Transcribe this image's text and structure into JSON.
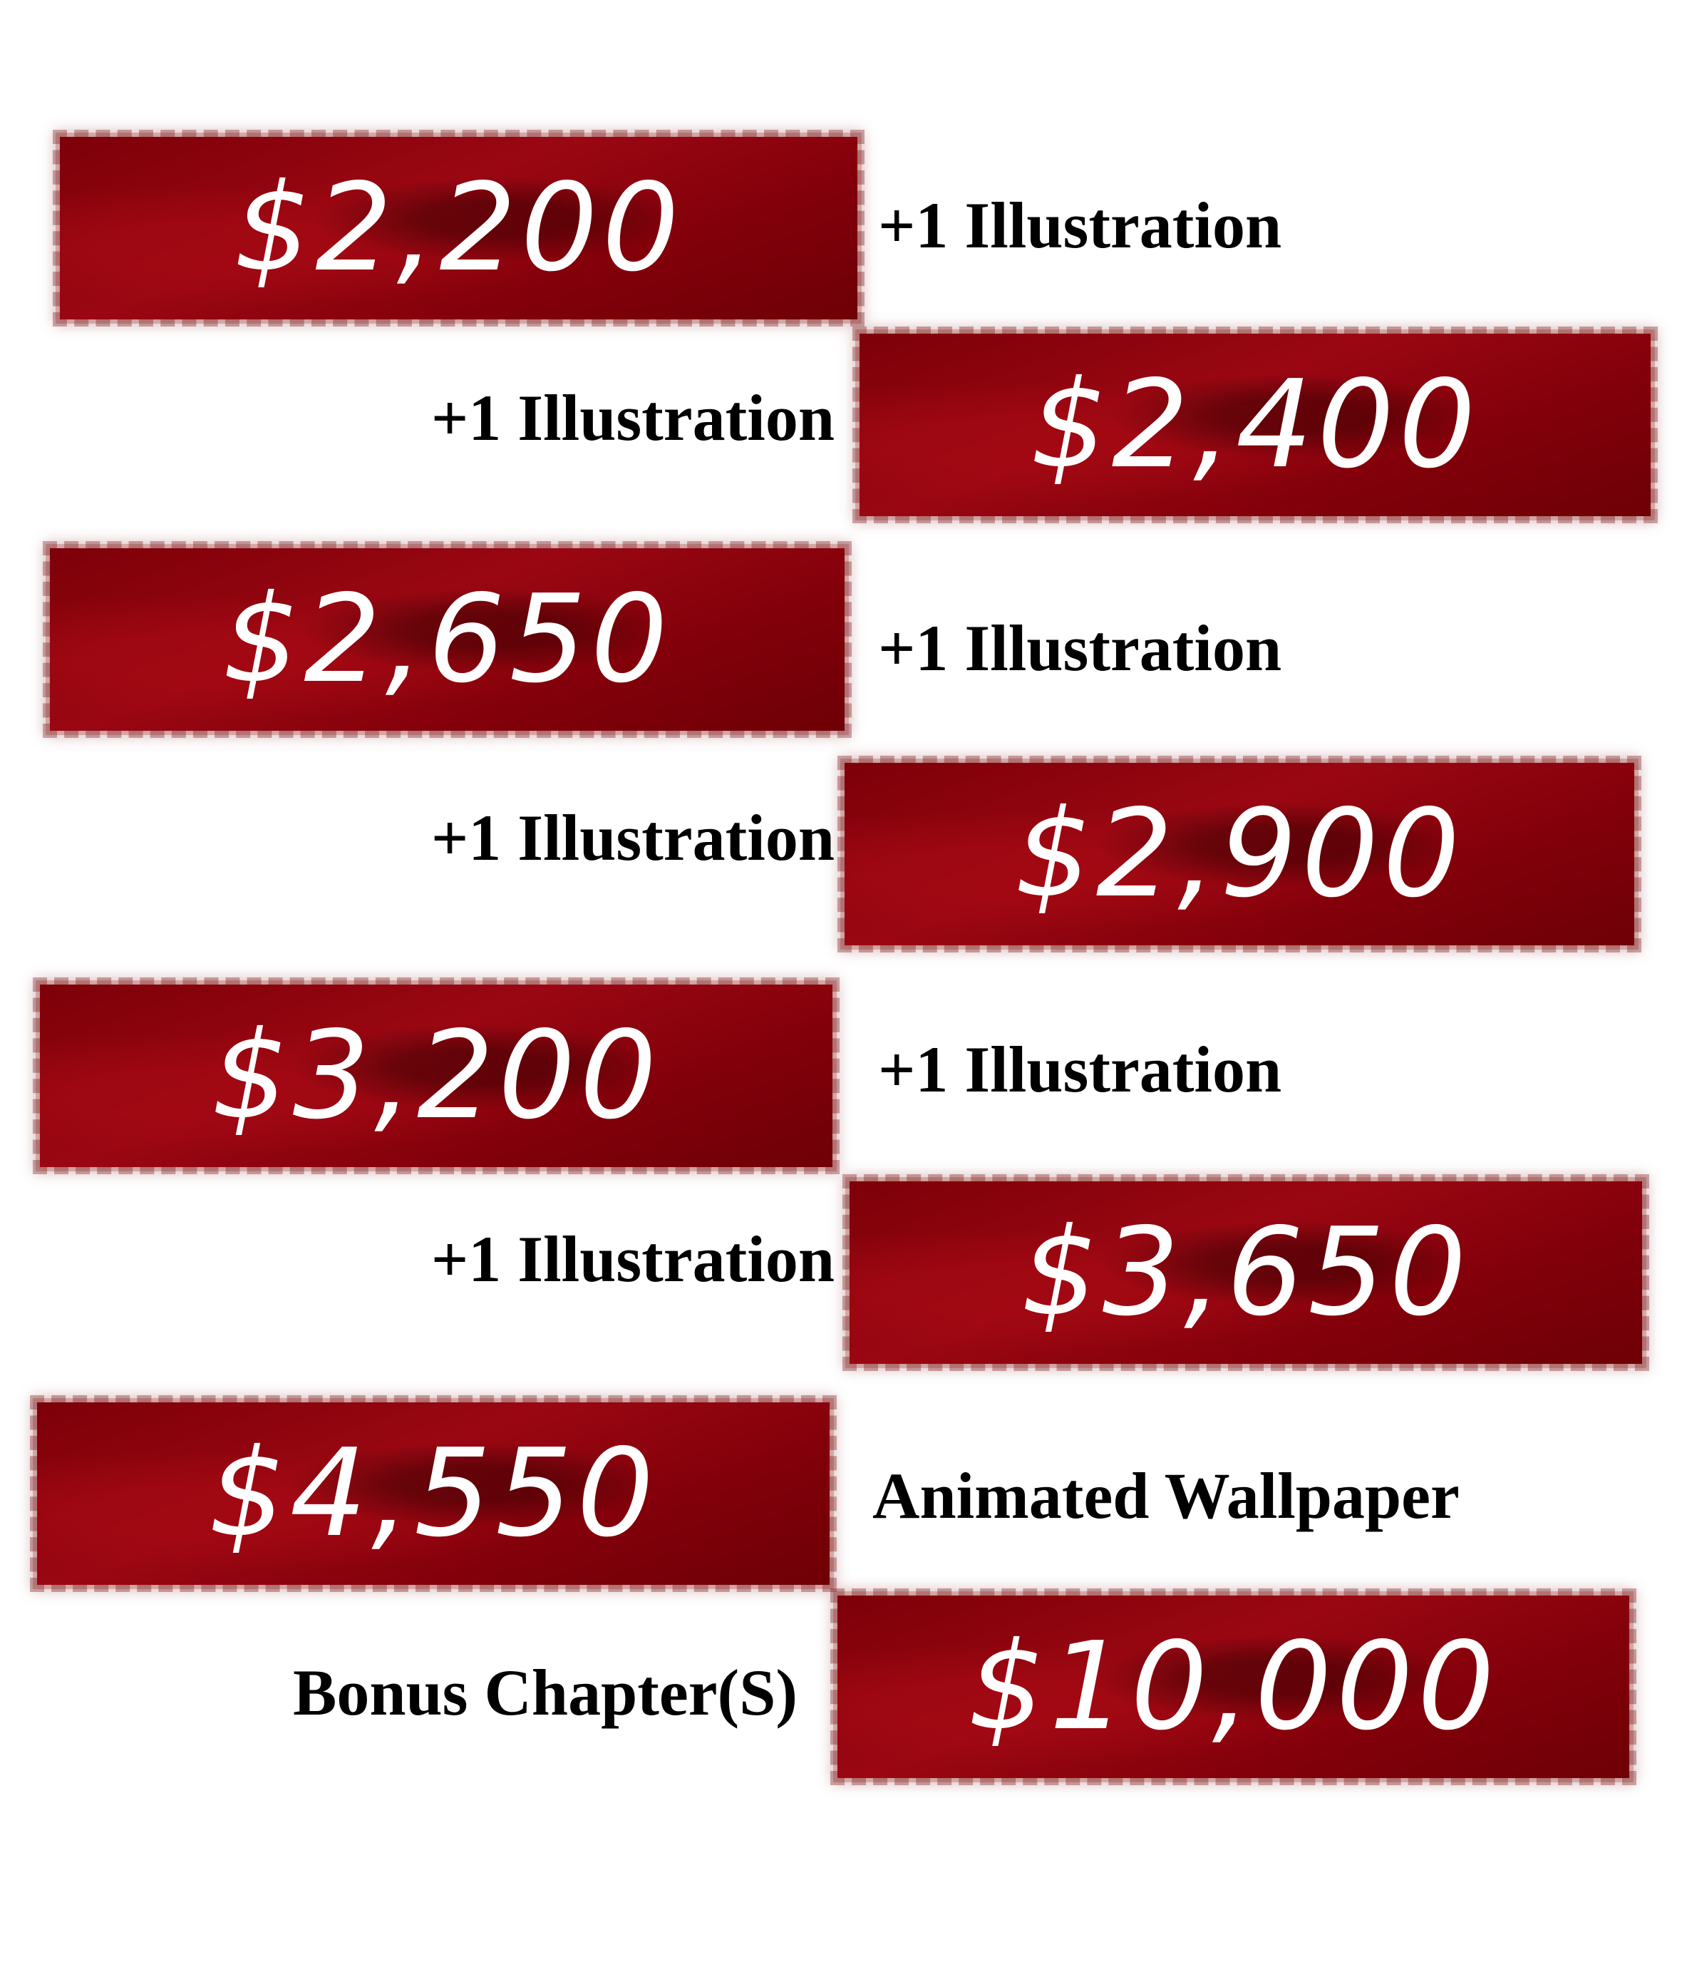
{
  "tiers": [
    {
      "price": "$2,200",
      "reward": "+1 Illustration"
    },
    {
      "price": "$2,400",
      "reward": "+1 Illustration"
    },
    {
      "price": "$2,650",
      "reward": "+1 Illustration"
    },
    {
      "price": "$2,900",
      "reward": "+1 Illustration"
    },
    {
      "price": "$3,200",
      "reward": "+1 Illustration"
    },
    {
      "price": "$3,650",
      "reward": "+1 Illustration"
    },
    {
      "price": "$4,550",
      "reward": "Animated Wallpaper"
    },
    {
      "price": "$10,000",
      "reward": "Bonus Chapter(S)"
    }
  ],
  "colors": {
    "banner": "#8a0510",
    "text": "#ffffff",
    "label": "#000000"
  }
}
